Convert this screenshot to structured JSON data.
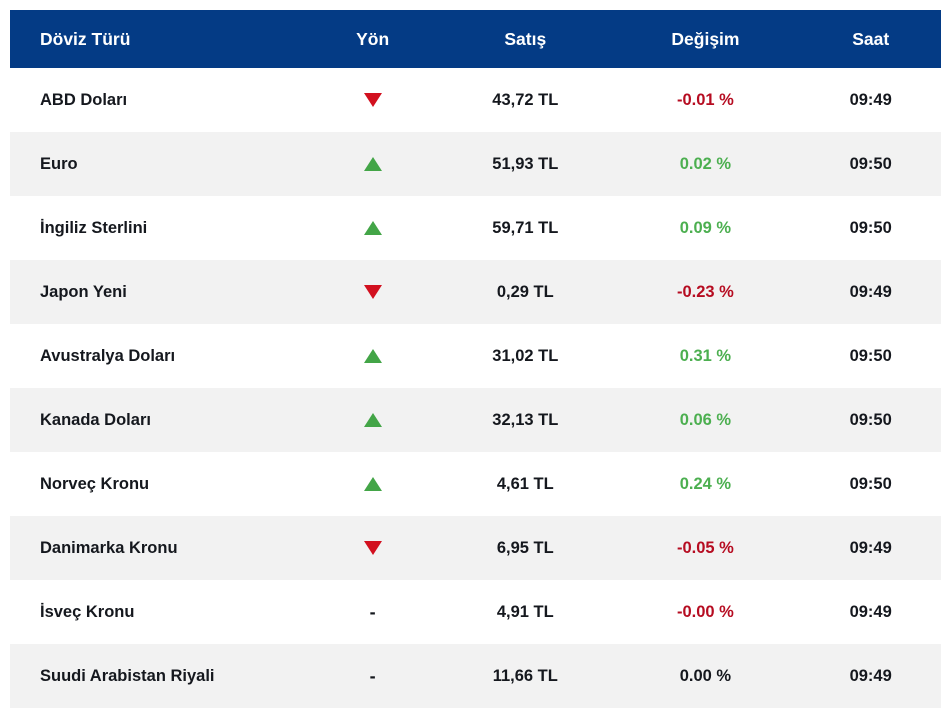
{
  "colors": {
    "header_bg": "#043b85",
    "header_text": "#ffffff",
    "row_bg": "#ffffff",
    "row_alt_bg": "#f2f2f2",
    "text": "#15181e",
    "positive": "#4caf50",
    "negative": "#b60c21",
    "triangle_up": "#43a547",
    "triangle_down": "#d2101f"
  },
  "header": {
    "currency": "Döviz Türü",
    "direction": "Yön",
    "sell": "Satış",
    "change": "Değişim",
    "time": "Saat"
  },
  "icons": {
    "flat_symbol": "-"
  },
  "rows": [
    {
      "name": "ABD Doları",
      "direction": "down",
      "sell": "43,72 TL",
      "change": "-0.01 %",
      "trend": "negative",
      "time": "09:49"
    },
    {
      "name": "Euro",
      "direction": "up",
      "sell": "51,93 TL",
      "change": "0.02 %",
      "trend": "positive",
      "time": "09:50"
    },
    {
      "name": "İngiliz Sterlini",
      "direction": "up",
      "sell": "59,71 TL",
      "change": "0.09 %",
      "trend": "positive",
      "time": "09:50"
    },
    {
      "name": "Japon Yeni",
      "direction": "down",
      "sell": "0,29 TL",
      "change": "-0.23 %",
      "trend": "negative",
      "time": "09:49"
    },
    {
      "name": "Avustralya Doları",
      "direction": "up",
      "sell": "31,02 TL",
      "change": "0.31 %",
      "trend": "positive",
      "time": "09:50"
    },
    {
      "name": "Kanada Doları",
      "direction": "up",
      "sell": "32,13 TL",
      "change": "0.06 %",
      "trend": "positive",
      "time": "09:50"
    },
    {
      "name": "Norveç Kronu",
      "direction": "up",
      "sell": "4,61 TL",
      "change": "0.24 %",
      "trend": "positive",
      "time": "09:50"
    },
    {
      "name": "Danimarka Kronu",
      "direction": "down",
      "sell": "6,95 TL",
      "change": "-0.05 %",
      "trend": "negative",
      "time": "09:49"
    },
    {
      "name": "İsveç Kronu",
      "direction": "flat",
      "sell": "4,91 TL",
      "change": "-0.00 %",
      "trend": "negative",
      "time": "09:49"
    },
    {
      "name": "Suudi Arabistan Riyali",
      "direction": "flat",
      "sell": "11,66 TL",
      "change": "0.00 %",
      "trend": "neutral",
      "time": "09:49"
    }
  ]
}
